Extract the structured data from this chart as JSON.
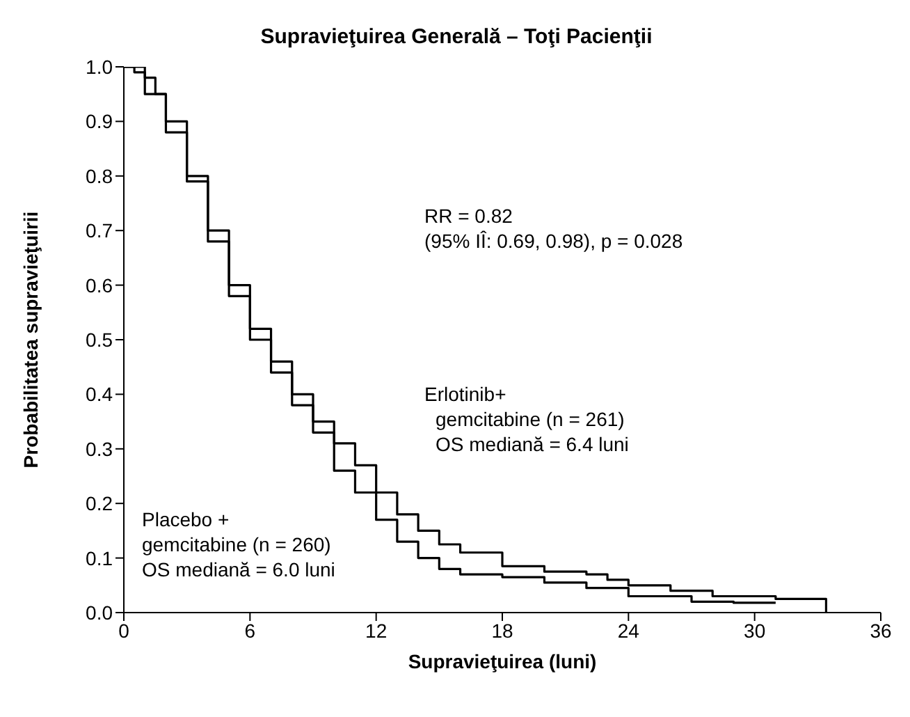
{
  "chart_data": {
    "type": "step",
    "title": "Supravieţuirea Generală – Toţi Pacienţii",
    "xlabel": "Supravieţuirea (luni)",
    "ylabel": "Probabilitatea supravieţuirii",
    "xlim": [
      0,
      36
    ],
    "xticks": [
      0,
      6,
      12,
      18,
      24,
      30,
      36
    ],
    "ylim": [
      0,
      1
    ],
    "yticks": [
      {
        "value": 0,
        "label": "0.0"
      },
      {
        "value": 0.1,
        "label": "0.1"
      },
      {
        "value": 0.2,
        "label": "0.2"
      },
      {
        "value": 0.3,
        "label": "0.3"
      },
      {
        "value": 0.4,
        "label": "0.4"
      },
      {
        "value": 0.5,
        "label": "0.5"
      },
      {
        "value": 0.6,
        "label": "0.6"
      },
      {
        "value": 0.7,
        "label": "0.7"
      },
      {
        "value": 0.8,
        "label": "0.8"
      },
      {
        "value": 0.9,
        "label": "0.9"
      },
      {
        "value": 1,
        "label": "1.0"
      }
    ],
    "grid": false,
    "legend": false,
    "marker": "none",
    "line_style": "solid",
    "series": [
      {
        "color": "#000000",
        "x": [
          0,
          1,
          1.5,
          2,
          3,
          4,
          5,
          6,
          7,
          8,
          9,
          10,
          11,
          12,
          13,
          14,
          15,
          16,
          18,
          20,
          22,
          23,
          24,
          26,
          28,
          31,
          33.4,
          33.4
        ],
        "values": [
          1,
          0.98,
          0.95,
          0.9,
          0.8,
          0.7,
          0.6,
          0.52,
          0.46,
          0.4,
          0.35,
          0.31,
          0.27,
          0.22,
          0.18,
          0.15,
          0.125,
          0.11,
          0.085,
          0.075,
          0.07,
          0.06,
          0.05,
          0.04,
          0.03,
          0.025,
          0.025,
          0
        ]
      },
      {
        "color": "#000000",
        "x": [
          0,
          0.5,
          1,
          2,
          3,
          4,
          5,
          6,
          7,
          8,
          9,
          10,
          11,
          12,
          13,
          14,
          15,
          16,
          18,
          20,
          22,
          24,
          27,
          29,
          31
        ],
        "values": [
          1,
          0.99,
          0.95,
          0.88,
          0.79,
          0.68,
          0.58,
          0.5,
          0.44,
          0.38,
          0.33,
          0.26,
          0.22,
          0.17,
          0.13,
          0.1,
          0.08,
          0.07,
          0.065,
          0.055,
          0.045,
          0.03,
          0.02,
          0.018,
          0.018
        ]
      }
    ],
    "annotations": [
      "RR = 0.82\n(95% IÎ: 0.69, 0.98), p = 0.028",
      "Erlotinib+\ngemcitabine (n = 261)\nOS mediană = 6.4 luni",
      "Placebo +\ngemcitabine (n = 260)\nOS mediană = 6.0 luni"
    ]
  }
}
